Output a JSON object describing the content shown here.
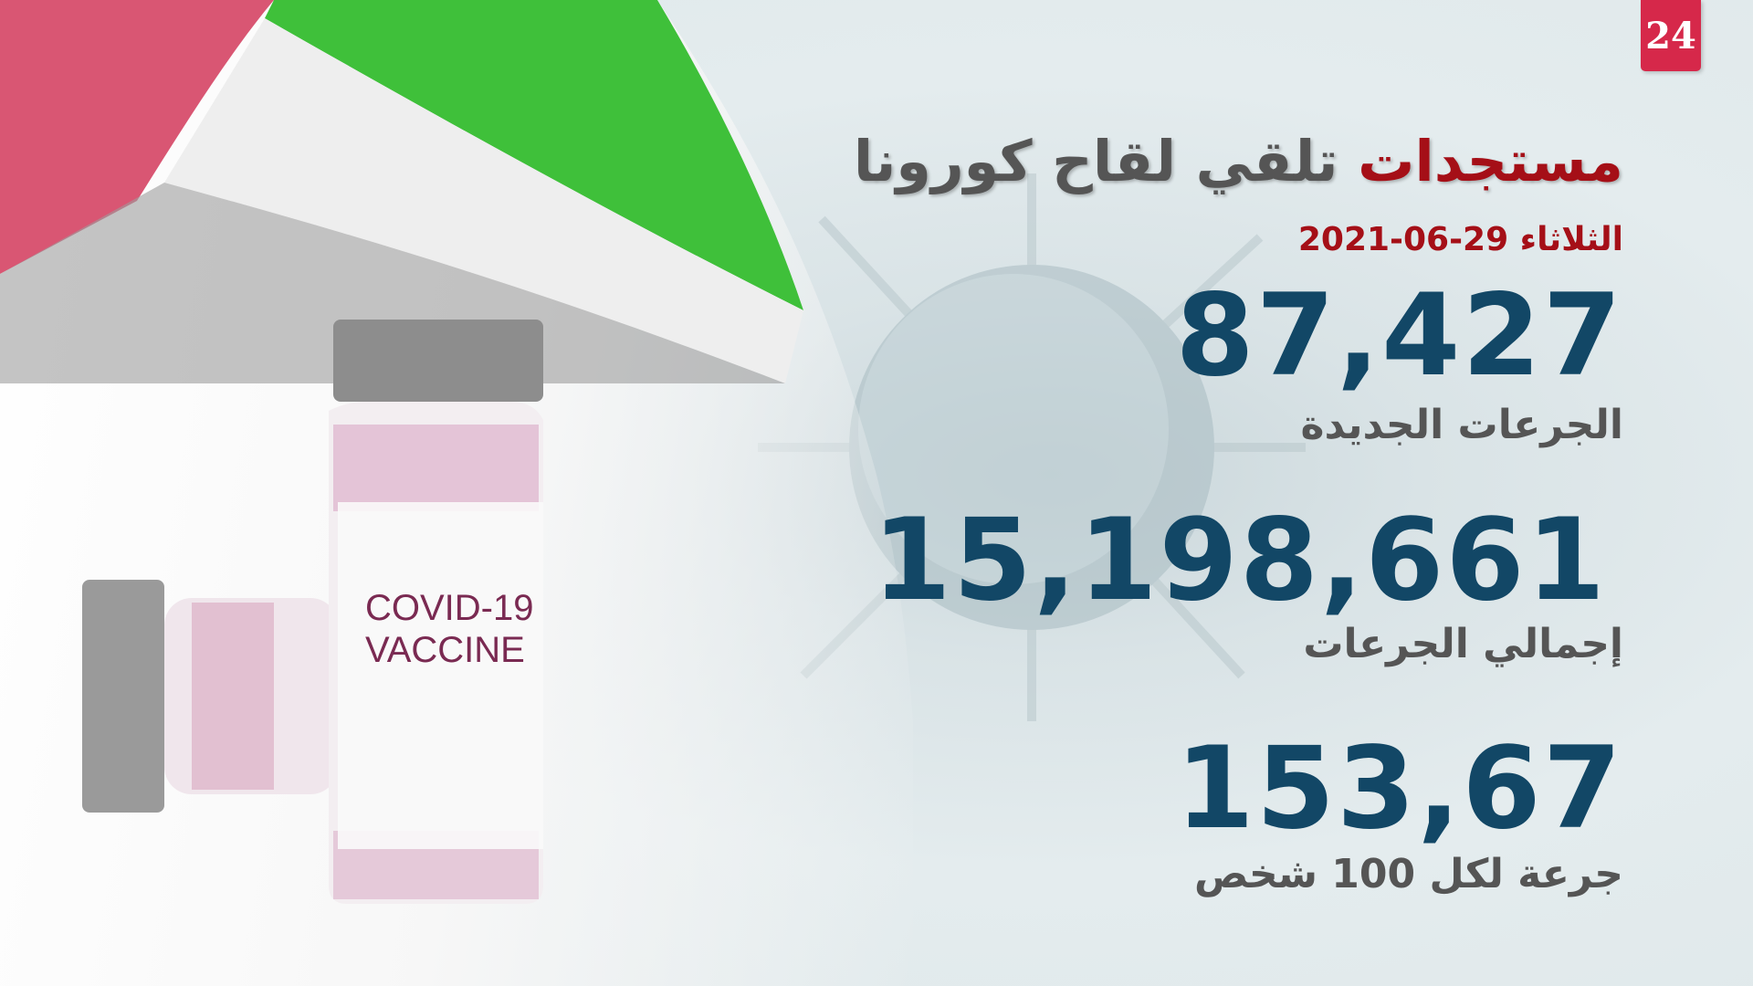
{
  "logo": {
    "text": "24",
    "color": "#d6284a"
  },
  "header": {
    "title_highlight": "مستجدات",
    "title_rest": "تلقي لقاح كورونا",
    "day": "الثلاثاء",
    "date": "2021-06-29"
  },
  "vial": {
    "label_line1": "COVID-19",
    "label_line2": "VACCINE"
  },
  "stats": [
    {
      "value": "87,427",
      "label": "الجرعات الجديدة"
    },
    {
      "value": "15,198,661",
      "label": "إجمالي الجرعات"
    },
    {
      "value": "153,67",
      "label": "جرعة لكل 100 شخص"
    }
  ],
  "colors": {
    "accent_red": "#a50f17",
    "number_blue": "#124766"
  }
}
